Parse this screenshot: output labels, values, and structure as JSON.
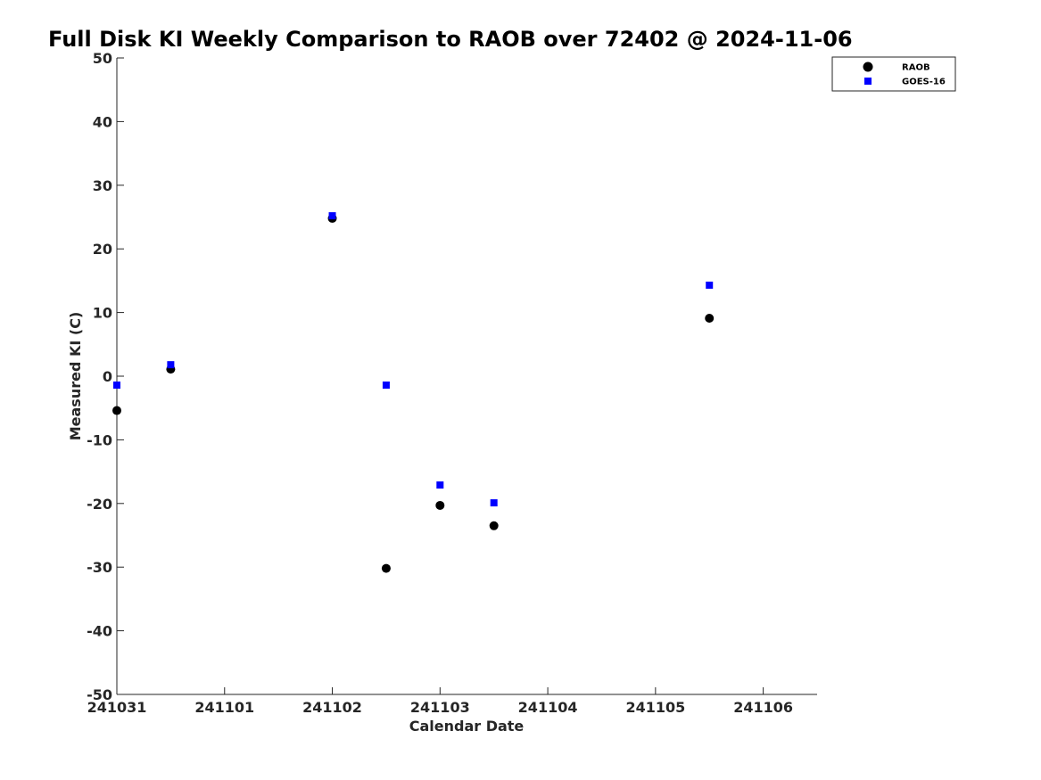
{
  "chart_data": {
    "type": "scatter",
    "title": "Full Disk KI Weekly Comparison to RAOB over 72402 @ 2024-11-06",
    "xlabel": "Calendar Date",
    "ylabel": "Measured KI (C)",
    "xlim": [
      "2024-10-31",
      "2024-11-06 12:00"
    ],
    "ylim": [
      -50,
      50
    ],
    "x_ticks": [
      {
        "x": "2024-10-31",
        "label": "241031"
      },
      {
        "x": "2024-11-01",
        "label": "241101"
      },
      {
        "x": "2024-11-02",
        "label": "241102"
      },
      {
        "x": "2024-11-03",
        "label": "241103"
      },
      {
        "x": "2024-11-04",
        "label": "241104"
      },
      {
        "x": "2024-11-05",
        "label": "241105"
      },
      {
        "x": "2024-11-06",
        "label": "241106"
      }
    ],
    "y_ticks": [
      50,
      40,
      30,
      20,
      10,
      0,
      -10,
      -20,
      -30,
      -40,
      -50
    ],
    "grid": false,
    "legend_position": "top-right",
    "series": [
      {
        "name": "RAOB",
        "marker": "circle",
        "color": "#000000",
        "points": [
          {
            "x": "2024-10-31 00:00",
            "y": -5.4
          },
          {
            "x": "2024-10-31 12:00",
            "y": 1.1
          },
          {
            "x": "2024-11-02 00:00",
            "y": 24.8
          },
          {
            "x": "2024-11-02 12:00",
            "y": -30.2
          },
          {
            "x": "2024-11-03 00:00",
            "y": -20.3
          },
          {
            "x": "2024-11-03 12:00",
            "y": -23.5
          },
          {
            "x": "2024-11-05 12:00",
            "y": 9.1
          }
        ]
      },
      {
        "name": "GOES-16",
        "marker": "square",
        "color": "#0000ff",
        "points": [
          {
            "x": "2024-10-31 00:00",
            "y": -1.4
          },
          {
            "x": "2024-10-31 12:00",
            "y": 1.8
          },
          {
            "x": "2024-11-02 00:00",
            "y": 25.2
          },
          {
            "x": "2024-11-02 12:00",
            "y": -1.4
          },
          {
            "x": "2024-11-03 00:00",
            "y": -17.1
          },
          {
            "x": "2024-11-03 12:00",
            "y": -19.9
          },
          {
            "x": "2024-11-05 12:00",
            "y": 14.3
          }
        ]
      }
    ]
  }
}
